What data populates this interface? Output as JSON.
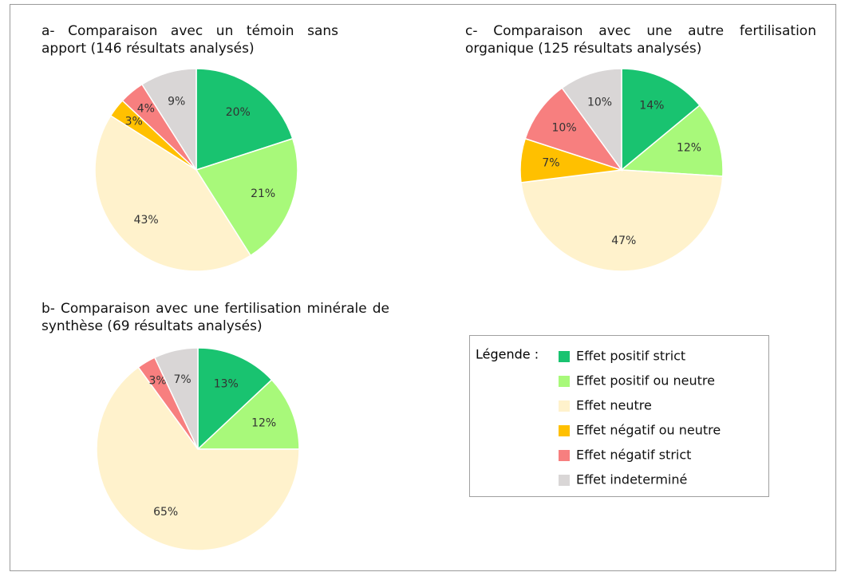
{
  "legend": {
    "title": "Légende :",
    "categories": [
      "Effet positif strict",
      "Effet positif ou neutre",
      "Effet neutre",
      "Effet négatif ou neutre",
      "Effet négatif strict",
      "Effet indeterminé"
    ],
    "colors": [
      "#19c370",
      "#a8f97a",
      "#fff2cc",
      "#ffc000",
      "#f77f7f",
      "#d9d6d6"
    ]
  },
  "chart_data": [
    {
      "type": "pie",
      "title": "a- Comparaison avec un témoin sans apport (146 résultats analysés)",
      "values": [
        20,
        21,
        43,
        3,
        4,
        9
      ],
      "value_labels": [
        "20%",
        "21%",
        "43%",
        "3%",
        "4%",
        "9%"
      ]
    },
    {
      "type": "pie",
      "title": "b- Comparaison avec une fertilisation minérale de synthèse (69 résultats analysés)",
      "values": [
        13,
        12,
        65,
        0,
        3,
        7
      ],
      "value_labels": [
        "13%",
        "12%",
        "65%",
        null,
        "3%",
        "7%"
      ]
    },
    {
      "type": "pie",
      "title": "c- Comparaison avec une autre fertilisation organique (125 résultats analysés)",
      "values": [
        14,
        12,
        47,
        7,
        10,
        10
      ],
      "value_labels": [
        "14%",
        "12%",
        "47%",
        "7%",
        "10%",
        "10%"
      ]
    }
  ]
}
